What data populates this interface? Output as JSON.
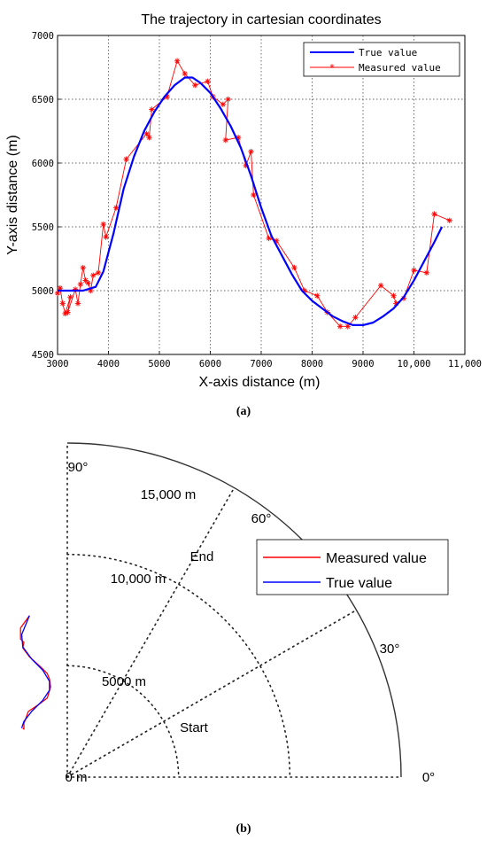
{
  "chart_data": [
    {
      "type": "line",
      "title": "The trajectory in cartesian coordinates",
      "xlabel": "X-axis distance (m)",
      "ylabel": "Y-axis distance (m)",
      "xlim": [
        3000,
        11000
      ],
      "ylim": [
        4500,
        7000
      ],
      "xticks": [
        3000,
        4000,
        5000,
        6000,
        7000,
        8000,
        9000,
        10000,
        11000
      ],
      "xtick_labels": [
        "3000",
        "4000",
        "5000",
        "6000",
        "7000",
        "8000",
        "9000",
        "10,000",
        "11,000"
      ],
      "yticks": [
        4500,
        5000,
        5500,
        6000,
        6500,
        7000
      ],
      "ytick_labels": [
        "4500",
        "5000",
        "5500",
        "6000",
        "6500",
        "7000"
      ],
      "grid": true,
      "legend_position": "top-right",
      "caption": "(a)",
      "series": [
        {
          "name": "True value",
          "color": "#0000ff",
          "marker": "none",
          "points": [
            [
              3000,
              5000
            ],
            [
              3500,
              5000
            ],
            [
              3750,
              5030
            ],
            [
              3900,
              5150
            ],
            [
              4100,
              5450
            ],
            [
              4300,
              5800
            ],
            [
              4500,
              6050
            ],
            [
              4700,
              6250
            ],
            [
              4900,
              6400
            ],
            [
              5100,
              6520
            ],
            [
              5300,
              6610
            ],
            [
              5500,
              6670
            ],
            [
              5650,
              6670
            ],
            [
              5800,
              6630
            ],
            [
              6000,
              6550
            ],
            [
              6200,
              6430
            ],
            [
              6400,
              6290
            ],
            [
              6600,
              6120
            ],
            [
              6800,
              5900
            ],
            [
              7000,
              5650
            ],
            [
              7200,
              5430
            ],
            [
              7400,
              5280
            ],
            [
              7600,
              5130
            ],
            [
              7800,
              5000
            ],
            [
              8000,
              4920
            ],
            [
              8200,
              4860
            ],
            [
              8400,
              4800
            ],
            [
              8600,
              4760
            ],
            [
              8800,
              4730
            ],
            [
              9000,
              4730
            ],
            [
              9200,
              4750
            ],
            [
              9400,
              4800
            ],
            [
              9600,
              4860
            ],
            [
              9800,
              4950
            ],
            [
              10000,
              5080
            ],
            [
              10200,
              5230
            ],
            [
              10400,
              5380
            ],
            [
              10550,
              5500
            ]
          ]
        },
        {
          "name": "Measured value",
          "color": "#ff0000",
          "marker": "*",
          "points": [
            [
              3000,
              4980
            ],
            [
              3050,
              5020
            ],
            [
              3100,
              4900
            ],
            [
              3150,
              4820
            ],
            [
              3250,
              4950
            ],
            [
              3200,
              4830
            ],
            [
              3350,
              5010
            ],
            [
              3400,
              4900
            ],
            [
              3450,
              5050
            ],
            [
              3500,
              5180
            ],
            [
              3550,
              5080
            ],
            [
              3600,
              5060
            ],
            [
              3650,
              5000
            ],
            [
              3700,
              5120
            ],
            [
              3800,
              5140
            ],
            [
              3900,
              5520
            ],
            [
              3950,
              5420
            ],
            [
              4150,
              5650
            ],
            [
              4350,
              6030
            ],
            [
              4750,
              6230
            ],
            [
              4800,
              6200
            ],
            [
              4850,
              6420
            ],
            [
              5150,
              6520
            ],
            [
              5350,
              6800
            ],
            [
              5500,
              6700
            ],
            [
              5700,
              6610
            ],
            [
              5950,
              6640
            ],
            [
              6050,
              6520
            ],
            [
              6250,
              6460
            ],
            [
              6350,
              6500
            ],
            [
              6300,
              6180
            ],
            [
              6550,
              6200
            ],
            [
              6700,
              5980
            ],
            [
              6800,
              6090
            ],
            [
              6850,
              5750
            ],
            [
              7150,
              5410
            ],
            [
              7300,
              5390
            ],
            [
              7650,
              5180
            ],
            [
              7850,
              5000
            ],
            [
              8100,
              4960
            ],
            [
              8300,
              4830
            ],
            [
              8550,
              4720
            ],
            [
              8700,
              4720
            ],
            [
              8850,
              4790
            ],
            [
              9350,
              5040
            ],
            [
              9600,
              4960
            ],
            [
              9650,
              4900
            ],
            [
              9800,
              4940
            ],
            [
              10000,
              5160
            ],
            [
              10250,
              5140
            ],
            [
              10400,
              5600
            ],
            [
              10700,
              5550
            ]
          ]
        }
      ]
    },
    {
      "type": "polar",
      "quadrant": "0-90 degrees",
      "angle_labels": [
        "90°",
        "60°",
        "30°",
        "0°"
      ],
      "radial_labels": [
        "0 m",
        "5000 m",
        "10,000 m",
        "15,000 m"
      ],
      "rmax": 15000,
      "grid": true,
      "legend_position": "top-right",
      "caption": "(b)",
      "annotations": [
        "Start",
        "End"
      ],
      "series": [
        {
          "name": "Measured value",
          "color": "#ff0000",
          "xy": [
            [
              -2000,
              2200
            ],
            [
              -1950,
              2150
            ],
            [
              -1950,
              2400
            ],
            [
              -1750,
              2950
            ],
            [
              -1300,
              3250
            ],
            [
              -900,
              3550
            ],
            [
              -750,
              4050
            ],
            [
              -800,
              4400
            ],
            [
              -900,
              4650
            ],
            [
              -1200,
              4950
            ],
            [
              -1700,
              5400
            ],
            [
              -2000,
              5800
            ],
            [
              -1950,
              6050
            ],
            [
              -2100,
              6200
            ],
            [
              -2100,
              6700
            ],
            [
              -1700,
              7250
            ]
          ]
        },
        {
          "name": "True value",
          "color": "#0000ff",
          "xy": [
            [
              -2050,
              2200
            ],
            [
              -1950,
              2500
            ],
            [
              -1600,
              2950
            ],
            [
              -1100,
              3450
            ],
            [
              -800,
              3900
            ],
            [
              -800,
              4300
            ],
            [
              -1100,
              4800
            ],
            [
              -1600,
              5300
            ],
            [
              -2000,
              5850
            ],
            [
              -2050,
              6400
            ],
            [
              -1700,
              7250
            ]
          ]
        }
      ]
    }
  ]
}
